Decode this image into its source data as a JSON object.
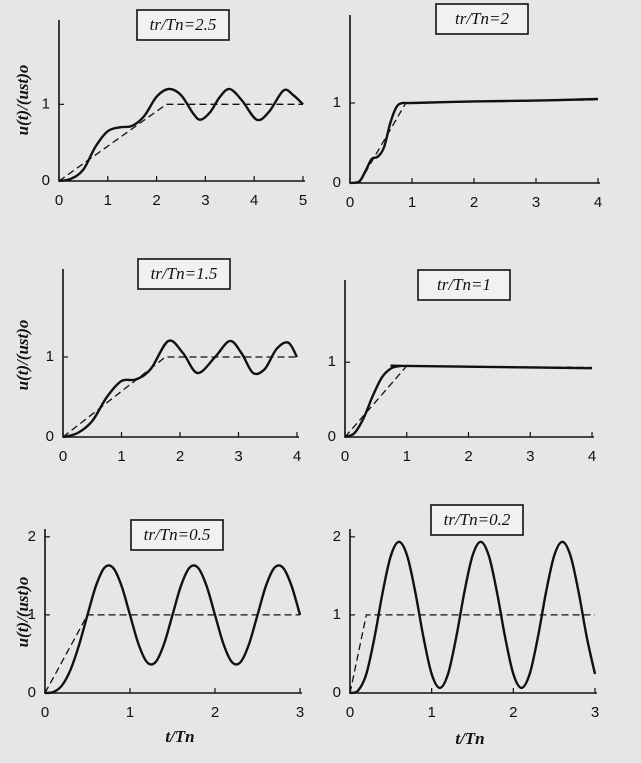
{
  "chart_data": [
    {
      "type": "line",
      "title": "tr/Tn=2.5",
      "ylabel": "u(t)/(ust)o",
      "xlim": [
        0,
        5
      ],
      "xticks": [
        0,
        1,
        2,
        3,
        4,
        5
      ],
      "ylim": [
        0,
        2.1
      ],
      "yticks": [
        0,
        1
      ],
      "series": [
        {
          "color": "#111",
          "style": "solid",
          "x": [
            0,
            0.25,
            0.5,
            0.75,
            1,
            1.25,
            1.5,
            1.75,
            2,
            2.25,
            2.5,
            2.75,
            2.9,
            3.1,
            3.3,
            3.5,
            3.75,
            4.05,
            4.3,
            4.6,
            4.8,
            5
          ],
          "values": [
            0,
            0.03,
            0.15,
            0.45,
            0.65,
            0.7,
            0.72,
            0.85,
            1.1,
            1.2,
            1.12,
            0.88,
            0.8,
            0.9,
            1.1,
            1.2,
            1.05,
            0.8,
            0.9,
            1.18,
            1.12,
            1.0
          ]
        },
        {
          "color": "#111",
          "style": "dashed",
          "x": [
            0,
            2.2,
            5
          ],
          "values": [
            0,
            1,
            1
          ]
        }
      ]
    },
    {
      "type": "line",
      "title": "tr/Tn=2",
      "xlim": [
        0,
        4
      ],
      "xticks": [
        0,
        1,
        2,
        3,
        4
      ],
      "ylim": [
        0,
        2.1
      ],
      "yticks": [
        0,
        1
      ],
      "series": [
        {
          "color": "#111",
          "style": "solid",
          "x": [
            0,
            0.15,
            0.25,
            0.35,
            0.45,
            0.55,
            0.65,
            0.75,
            0.85,
            1,
            2,
            3,
            4
          ],
          "values": [
            0,
            0.02,
            0.15,
            0.3,
            0.33,
            0.45,
            0.75,
            0.95,
            1.0,
            1.0,
            1.02,
            1.03,
            1.05
          ]
        },
        {
          "color": "#111",
          "style": "dashed",
          "x": [
            0.15,
            0.9,
            4
          ],
          "values": [
            0,
            1,
            1.04
          ]
        }
      ]
    },
    {
      "type": "line",
      "title": "tr/Tn=1.5",
      "ylabel": "u(t)/(ust)o",
      "xlim": [
        0,
        4
      ],
      "xticks": [
        0,
        1,
        2,
        3,
        4
      ],
      "ylim": [
        0,
        2.1
      ],
      "yticks": [
        0,
        1
      ],
      "series": [
        {
          "color": "#111",
          "style": "solid",
          "x": [
            0,
            0.25,
            0.5,
            0.75,
            1,
            1.25,
            1.5,
            1.8,
            2.05,
            2.3,
            2.6,
            2.85,
            3.05,
            3.25,
            3.45,
            3.65,
            3.85,
            4
          ],
          "values": [
            0,
            0.05,
            0.2,
            0.5,
            0.7,
            0.72,
            0.85,
            1.2,
            1.05,
            0.8,
            1.0,
            1.2,
            1.05,
            0.8,
            0.85,
            1.1,
            1.18,
            1.0
          ]
        },
        {
          "color": "#111",
          "style": "dashed",
          "x": [
            0,
            1.75,
            4
          ],
          "values": [
            0,
            1,
            1
          ]
        }
      ]
    },
    {
      "type": "line",
      "title": "tr/Tn=1",
      "xlim": [
        0,
        4
      ],
      "xticks": [
        0,
        1,
        2,
        3,
        4
      ],
      "ylim": [
        0,
        2.1
      ],
      "yticks": [
        0,
        1
      ],
      "series": [
        {
          "color": "#111",
          "style": "solid",
          "x": [
            0,
            0.15,
            0.3,
            0.45,
            0.6,
            0.75,
            0.9,
            1,
            4
          ],
          "values": [
            0,
            0.05,
            0.25,
            0.55,
            0.8,
            0.92,
            0.95,
            0.95,
            0.92
          ]
        },
        {
          "color": "#111",
          "style": "dashed",
          "x": [
            0,
            1,
            4
          ],
          "values": [
            0,
            0.95,
            0.93
          ]
        }
      ]
    },
    {
      "type": "line",
      "title": "tr/Tn=0.5",
      "ylabel": "u(t)/(ust)o",
      "xlabel": "t/Tn",
      "xlim": [
        0,
        3
      ],
      "xticks": [
        0,
        1,
        2,
        3
      ],
      "ylim": [
        0,
        2.1
      ],
      "yticks": [
        0,
        1,
        2
      ],
      "series": [
        {
          "color": "#111",
          "style": "solid",
          "x": [
            0,
            0.1,
            0.2,
            0.3,
            0.4,
            0.5,
            0.6,
            0.7,
            0.8,
            0.9,
            1,
            1.1,
            1.2,
            1.3,
            1.4,
            1.5,
            1.6,
            1.7,
            1.8,
            1.9,
            2,
            2.1,
            2.2,
            2.3,
            2.4,
            2.5,
            2.6,
            2.7,
            2.8,
            2.9,
            3
          ],
          "values": [
            0,
            0.013,
            0.097,
            0.297,
            0.613,
            1,
            1.374,
            1.605,
            1.605,
            1.374,
            1,
            0.626,
            0.395,
            0.395,
            0.626,
            1,
            1.374,
            1.605,
            1.605,
            1.374,
            1,
            0.626,
            0.395,
            0.395,
            0.626,
            1,
            1.374,
            1.605,
            1.605,
            1.374,
            1
          ]
        },
        {
          "color": "#111",
          "style": "dashed",
          "x": [
            0,
            0.5,
            3
          ],
          "values": [
            0,
            1,
            1
          ]
        }
      ]
    },
    {
      "type": "line",
      "title": "tr/Tn=0.2",
      "xlabel": "t/Tn",
      "xlim": [
        0,
        3
      ],
      "xticks": [
        0,
        1,
        2,
        3
      ],
      "ylim": [
        0,
        2.1
      ],
      "yticks": [
        0,
        1,
        2
      ],
      "series": [
        {
          "color": "#111",
          "style": "solid",
          "x": [
            0,
            0.1,
            0.2,
            0.3,
            0.4,
            0.5,
            0.6,
            0.7,
            0.8,
            0.9,
            1,
            1.1,
            1.2,
            1.3,
            1.4,
            1.5,
            1.6,
            1.7,
            1.8,
            1.9,
            2,
            2.1,
            2.2,
            2.3,
            2.4,
            2.5,
            2.6,
            2.7,
            2.8,
            2.9,
            3
          ],
          "values": [
            0,
            0.032,
            0.243,
            0.711,
            1.289,
            1.757,
            1.936,
            1.757,
            1.289,
            0.711,
            0.243,
            0.065,
            0.243,
            0.711,
            1.289,
            1.757,
            1.936,
            1.757,
            1.289,
            0.711,
            0.243,
            0.065,
            0.243,
            0.711,
            1.289,
            1.757,
            1.936,
            1.757,
            1.289,
            0.711,
            0.243
          ]
        },
        {
          "color": "#111",
          "style": "dashed",
          "x": [
            0,
            0.2,
            3
          ],
          "values": [
            0,
            1,
            1
          ]
        }
      ]
    }
  ]
}
